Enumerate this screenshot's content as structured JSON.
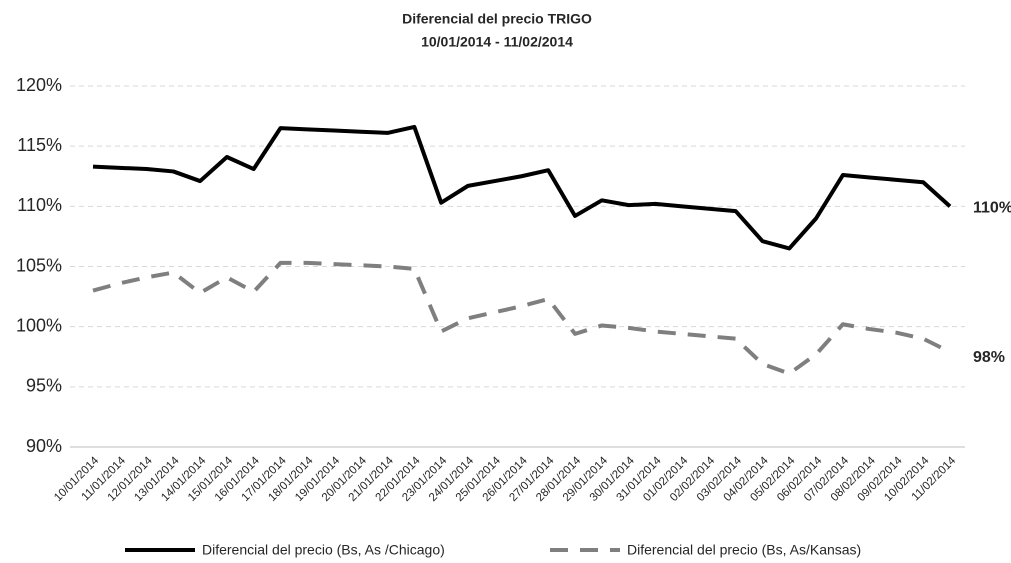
{
  "chart_data": {
    "type": "line",
    "title": "Diferencial del precio TRIGO",
    "subtitle": "10/01/2014 - 11/02/2014",
    "categories": [
      "10/01/2014",
      "11/01/2014",
      "12/01/2014",
      "13/01/2014",
      "14/01/2014",
      "15/01/2014",
      "16/01/2014",
      "17/01/2014",
      "18/01/2014",
      "19/01/2014",
      "20/01/2014",
      "21/01/2014",
      "22/01/2014",
      "23/01/2014",
      "24/01/2014",
      "25/01/2014",
      "26/01/2014",
      "27/01/2014",
      "28/01/2014",
      "29/01/2014",
      "30/01/2014",
      "31/01/2014",
      "01/02/2014",
      "02/02/2014",
      "03/02/2014",
      "04/02/2014",
      "05/02/2014",
      "06/02/2014",
      "07/02/2014",
      "08/02/2014",
      "09/02/2014",
      "10/02/2014",
      "11/02/2014"
    ],
    "series": [
      {
        "name": "Diferencial del precio (Bs, As /Chicago)",
        "color": "#000000",
        "dash": false,
        "values": [
          113.3,
          113.2,
          113.1,
          112.9,
          112.1,
          114.1,
          113.1,
          116.5,
          116.4,
          116.3,
          116.2,
          116.1,
          116.6,
          110.3,
          111.7,
          112.1,
          112.5,
          113.0,
          109.2,
          110.5,
          110.1,
          110.2,
          110.0,
          109.8,
          109.6,
          107.1,
          106.5,
          109.0,
          112.6,
          112.4,
          112.2,
          112.0,
          110.0
        ],
        "value_labels": [
          null,
          null,
          null,
          null,
          null,
          null,
          null,
          null,
          null,
          null,
          null,
          null,
          null,
          null,
          null,
          null,
          null,
          null,
          null,
          null,
          null,
          null,
          null,
          null,
          null,
          null,
          null,
          null,
          null,
          null,
          null,
          null,
          "110%"
        ]
      },
      {
        "name": "Diferencial del precio (Bs, As/Kansas)",
        "color": "#7f7f7f",
        "dash": true,
        "values": [
          103.0,
          103.6,
          104.1,
          104.5,
          102.8,
          104.1,
          102.9,
          105.3,
          105.3,
          105.2,
          105.1,
          105.0,
          104.8,
          99.6,
          100.7,
          101.2,
          101.7,
          102.3,
          99.4,
          100.1,
          99.9,
          99.6,
          99.4,
          99.2,
          99.0,
          96.9,
          96.1,
          97.7,
          100.2,
          99.8,
          99.5,
          99.0,
          97.9
        ],
        "value_labels": [
          null,
          null,
          null,
          null,
          null,
          null,
          null,
          null,
          null,
          null,
          null,
          null,
          null,
          null,
          null,
          null,
          null,
          null,
          null,
          null,
          null,
          null,
          null,
          null,
          null,
          null,
          null,
          null,
          null,
          null,
          null,
          null,
          "98%"
        ]
      }
    ],
    "ylim": [
      90,
      120
    ],
    "yticks": [
      {
        "value": 90,
        "label": "90%"
      },
      {
        "value": 95,
        "label": "95%"
      },
      {
        "value": 100,
        "label": "100%"
      },
      {
        "value": 105,
        "label": "105%"
      },
      {
        "value": 110,
        "label": "110%"
      },
      {
        "value": 115,
        "label": "115%"
      },
      {
        "value": 120,
        "label": "120%"
      }
    ],
    "grid": true,
    "legend": "bottom"
  }
}
